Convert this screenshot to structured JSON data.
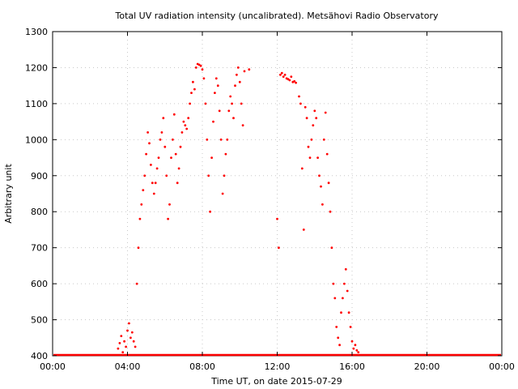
{
  "chart_data": {
    "type": "scatter",
    "title": "Total UV radiation intensity (uncalibrated). Metsähovi Radio Observatory",
    "xlabel": "Time UT, on date 2015-07-29",
    "ylabel": "Arbitrary unit",
    "xlim": [
      "00:00",
      "24:00"
    ],
    "ylim": [
      400,
      1300
    ],
    "x_ticks": [
      "00:00",
      "04:00",
      "08:00",
      "12:00",
      "16:00",
      "20:00",
      "00:00"
    ],
    "y_ticks": [
      400,
      500,
      600,
      700,
      800,
      900,
      1000,
      1100,
      1200,
      1300
    ],
    "grid": true,
    "marker_color": "#ff0000",
    "series": [
      {
        "points": [
          [
            "03:30",
            420
          ],
          [
            "03:35",
            435
          ],
          [
            "03:40",
            455
          ],
          [
            "03:45",
            410
          ],
          [
            "03:50",
            440
          ],
          [
            "03:55",
            425
          ],
          [
            "04:00",
            470
          ],
          [
            "04:05",
            490
          ],
          [
            "04:10",
            450
          ],
          [
            "04:15",
            465
          ],
          [
            "04:20",
            440
          ],
          [
            "04:25",
            425
          ],
          [
            "04:30",
            600
          ],
          [
            "04:35",
            700
          ],
          [
            "04:40",
            780
          ],
          [
            "04:45",
            820
          ],
          [
            "04:50",
            860
          ],
          [
            "04:55",
            900
          ],
          [
            "05:00",
            960
          ],
          [
            "05:05",
            1020
          ],
          [
            "05:10",
            990
          ],
          [
            "05:15",
            930
          ],
          [
            "05:20",
            880
          ],
          [
            "05:25",
            850
          ],
          [
            "05:30",
            880
          ],
          [
            "05:35",
            920
          ],
          [
            "05:40",
            950
          ],
          [
            "05:45",
            1000
          ],
          [
            "05:50",
            1020
          ],
          [
            "05:55",
            1060
          ],
          [
            "06:00",
            980
          ],
          [
            "06:05",
            900
          ],
          [
            "06:10",
            780
          ],
          [
            "06:15",
            820
          ],
          [
            "06:20",
            950
          ],
          [
            "06:25",
            1000
          ],
          [
            "06:30",
            1070
          ],
          [
            "06:35",
            960
          ],
          [
            "06:40",
            880
          ],
          [
            "06:45",
            920
          ],
          [
            "06:50",
            980
          ],
          [
            "06:55",
            1020
          ],
          [
            "07:00",
            1050
          ],
          [
            "07:05",
            1040
          ],
          [
            "07:10",
            1030
          ],
          [
            "07:15",
            1060
          ],
          [
            "07:20",
            1100
          ],
          [
            "07:25",
            1130
          ],
          [
            "07:30",
            1160
          ],
          [
            "07:35",
            1140
          ],
          [
            "07:40",
            1200
          ],
          [
            "07:45",
            1210
          ],
          [
            "07:50",
            1208
          ],
          [
            "07:55",
            1205
          ],
          [
            "08:00",
            1195
          ],
          [
            "08:05",
            1170
          ],
          [
            "08:10",
            1100
          ],
          [
            "08:15",
            1000
          ],
          [
            "08:20",
            900
          ],
          [
            "08:25",
            800
          ],
          [
            "08:30",
            950
          ],
          [
            "08:35",
            1050
          ],
          [
            "08:40",
            1130
          ],
          [
            "08:45",
            1170
          ],
          [
            "08:50",
            1150
          ],
          [
            "08:55",
            1080
          ],
          [
            "09:00",
            1000
          ],
          [
            "09:05",
            850
          ],
          [
            "09:10",
            900
          ],
          [
            "09:15",
            960
          ],
          [
            "09:20",
            1000
          ],
          [
            "09:25",
            1080
          ],
          [
            "09:30",
            1120
          ],
          [
            "09:35",
            1100
          ],
          [
            "09:40",
            1060
          ],
          [
            "09:45",
            1150
          ],
          [
            "09:50",
            1180
          ],
          [
            "09:55",
            1200
          ],
          [
            "10:00",
            1160
          ],
          [
            "10:05",
            1100
          ],
          [
            "10:10",
            1040
          ],
          [
            "10:15",
            1190
          ],
          [
            "10:30",
            1195
          ],
          [
            "12:00",
            780
          ],
          [
            "12:05",
            700
          ],
          [
            "12:10",
            1180
          ],
          [
            "12:15",
            1185
          ],
          [
            "12:20",
            1175
          ],
          [
            "12:25",
            1180
          ],
          [
            "12:30",
            1170
          ],
          [
            "12:35",
            1168
          ],
          [
            "12:40",
            1165
          ],
          [
            "12:45",
            1175
          ],
          [
            "12:50",
            1160
          ],
          [
            "12:55",
            1162
          ],
          [
            "13:00",
            1158
          ],
          [
            "13:10",
            1120
          ],
          [
            "13:15",
            1100
          ],
          [
            "13:20",
            920
          ],
          [
            "13:25",
            750
          ],
          [
            "13:30",
            1090
          ],
          [
            "13:35",
            1060
          ],
          [
            "13:40",
            980
          ],
          [
            "13:45",
            950
          ],
          [
            "13:50",
            1000
          ],
          [
            "13:55",
            1040
          ],
          [
            "14:00",
            1080
          ],
          [
            "14:05",
            1060
          ],
          [
            "14:10",
            950
          ],
          [
            "14:15",
            900
          ],
          [
            "14:20",
            870
          ],
          [
            "14:25",
            820
          ],
          [
            "14:30",
            1000
          ],
          [
            "14:35",
            1075
          ],
          [
            "14:40",
            960
          ],
          [
            "14:45",
            880
          ],
          [
            "14:50",
            800
          ],
          [
            "14:55",
            700
          ],
          [
            "15:00",
            600
          ],
          [
            "15:05",
            560
          ],
          [
            "15:10",
            480
          ],
          [
            "15:15",
            450
          ],
          [
            "15:20",
            430
          ],
          [
            "15:25",
            520
          ],
          [
            "15:30",
            560
          ],
          [
            "15:35",
            600
          ],
          [
            "15:40",
            640
          ],
          [
            "15:45",
            580
          ],
          [
            "15:50",
            520
          ],
          [
            "15:55",
            480
          ],
          [
            "16:00",
            440
          ],
          [
            "16:05",
            420
          ],
          [
            "16:10",
            430
          ],
          [
            "16:15",
            415
          ],
          [
            "16:20",
            410
          ]
        ]
      }
    ]
  }
}
